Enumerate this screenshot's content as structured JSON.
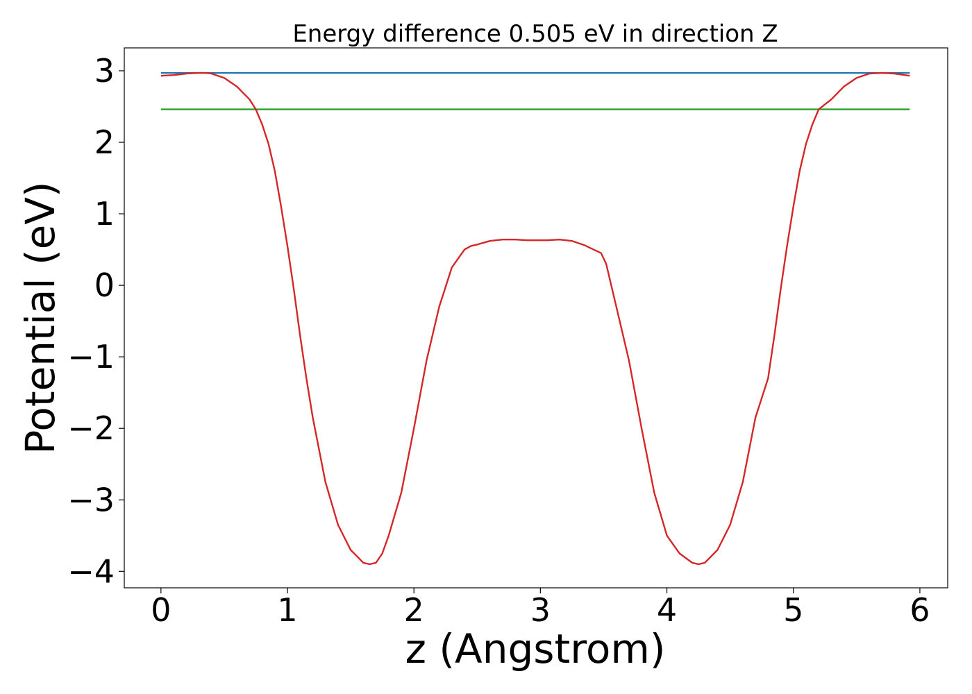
{
  "chart_data": {
    "type": "line",
    "title": "Energy difference 0.505 eV in direction Z",
    "xlabel": "z (Angstrom)",
    "ylabel": "Potential (eV)",
    "xlim": [
      -0.29,
      6.22
    ],
    "ylim": [
      -4.23,
      3.32
    ],
    "xticks": [
      0,
      1,
      2,
      3,
      4,
      5,
      6
    ],
    "yticks": [
      3,
      2,
      1,
      0,
      -1,
      -2,
      -3,
      -4
    ],
    "ytick_labels": [
      "3",
      "2",
      "1",
      "0",
      "−1",
      "−2",
      "−3",
      "−4"
    ],
    "grid": false,
    "series": [
      {
        "color": "#1f77b4",
        "x": [
          0,
          5.92
        ],
        "y": [
          2.97,
          2.97
        ]
      },
      {
        "color": "#2ca02c",
        "x": [
          0,
          5.92
        ],
        "y": [
          2.46,
          2.46
        ]
      },
      {
        "color": "#d62728",
        "x": [
          0,
          0.1,
          0.2,
          0.3,
          0.35,
          0.4,
          0.5,
          0.6,
          0.7,
          0.75,
          0.8,
          0.85,
          0.9,
          0.95,
          1.0,
          1.05,
          1.1,
          1.15,
          1.2,
          1.3,
          1.4,
          1.5,
          1.6,
          1.65,
          1.7,
          1.75,
          1.8,
          1.9,
          2.0,
          2.1,
          2.2,
          2.3,
          2.4,
          2.45,
          2.5,
          2.6,
          2.7,
          2.8,
          2.9,
          2.96,
          3.05,
          3.15,
          3.25,
          3.35,
          3.42,
          3.48,
          3.52,
          3.6,
          3.7,
          3.8,
          3.9,
          4.0,
          4.1,
          4.2,
          4.25,
          4.3,
          4.4,
          4.5,
          4.6,
          4.7,
          4.8,
          4.85,
          4.9,
          4.95,
          5.0,
          5.05,
          5.1,
          5.15,
          5.2,
          5.3,
          5.4,
          5.5,
          5.6,
          5.7,
          5.8,
          5.92
        ],
        "y": [
          2.93,
          2.94,
          2.96,
          2.97,
          2.97,
          2.96,
          2.9,
          2.78,
          2.6,
          2.46,
          2.25,
          1.98,
          1.6,
          1.1,
          0.55,
          -0.05,
          -0.7,
          -1.3,
          -1.85,
          -2.75,
          -3.35,
          -3.7,
          -3.88,
          -3.9,
          -3.88,
          -3.75,
          -3.5,
          -2.9,
          -2.0,
          -1.05,
          -0.3,
          0.25,
          0.5,
          0.55,
          0.57,
          0.62,
          0.64,
          0.64,
          0.63,
          0.63,
          0.63,
          0.64,
          0.62,
          0.56,
          0.5,
          0.45,
          0.3,
          -0.3,
          -1.05,
          -2.0,
          -2.9,
          -3.5,
          -3.75,
          -3.88,
          -3.9,
          -3.88,
          -3.7,
          -3.35,
          -2.75,
          -1.85,
          -1.3,
          -0.7,
          -0.05,
          0.55,
          1.1,
          1.6,
          1.98,
          2.25,
          2.46,
          2.6,
          2.78,
          2.9,
          2.96,
          2.97,
          2.96,
          2.93
        ]
      }
    ]
  }
}
